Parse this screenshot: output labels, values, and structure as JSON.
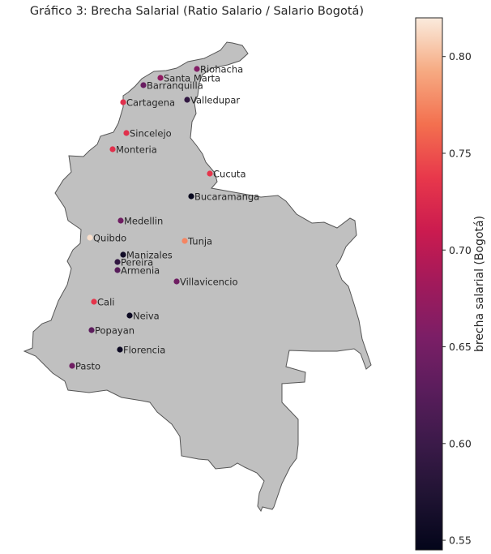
{
  "chart_data": {
    "type": "scatter",
    "title": "Gráfico 3: Brecha Salarial (Ratio Salario / Salario Bogotá)",
    "map_fill": "#c0c0c0",
    "map_stroke": "#555555",
    "colormap": "rocket",
    "colorbar": {
      "label": "brecha salarial (Bogotá)",
      "vmin": 0.545,
      "vmax": 0.82,
      "ticks": [
        "0.55",
        "0.60",
        "0.65",
        "0.70",
        "0.75",
        "0.80"
      ],
      "placement": "right"
    },
    "points": [
      {
        "name": "Riohacha",
        "value": 0.66
      },
      {
        "name": "Santa Marta",
        "value": 0.67
      },
      {
        "name": "Barranquilla",
        "value": 0.64
      },
      {
        "name": "Valledupar",
        "value": 0.59
      },
      {
        "name": "Cartagena",
        "value": 0.73
      },
      {
        "name": "Sincelejo",
        "value": 0.73
      },
      {
        "name": "Monteria",
        "value": 0.73
      },
      {
        "name": "Cucuta",
        "value": 0.735
      },
      {
        "name": "Bucaramanga",
        "value": 0.55
      },
      {
        "name": "Medellin",
        "value": 0.645
      },
      {
        "name": "Quibdo",
        "value": 0.815
      },
      {
        "name": "Tunja",
        "value": 0.775
      },
      {
        "name": "Manizales",
        "value": 0.56
      },
      {
        "name": "Pereira",
        "value": 0.59
      },
      {
        "name": "Armenia",
        "value": 0.625
      },
      {
        "name": "Villavicencio",
        "value": 0.645
      },
      {
        "name": "Cali",
        "value": 0.735
      },
      {
        "name": "Neiva",
        "value": 0.555
      },
      {
        "name": "Popayan",
        "value": 0.63
      },
      {
        "name": "Florencia",
        "value": 0.555
      },
      {
        "name": "Pasto",
        "value": 0.645
      }
    ]
  }
}
